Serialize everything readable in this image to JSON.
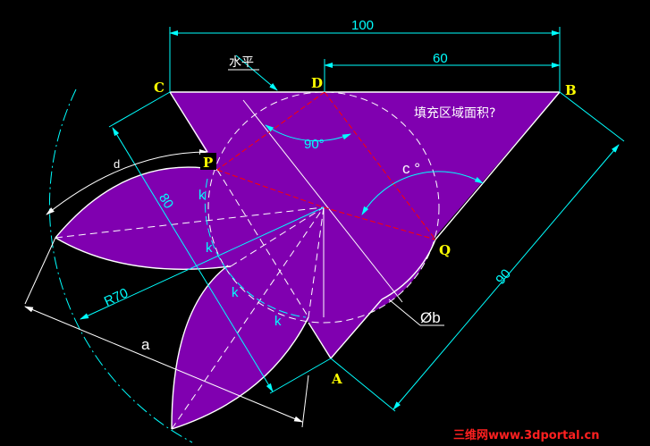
{
  "colors": {
    "fill": "#8000b0",
    "dimension": "#00ffff",
    "construction": "#ff0000",
    "label": "#ffff00",
    "outline": "#ffffff"
  },
  "points": {
    "A": "A",
    "B": "B",
    "C": "C",
    "D": "D",
    "P": "P",
    "Q": "Q"
  },
  "dimensions": {
    "top_width": "100",
    "d_to_b": "60",
    "ca_length": "80",
    "ba_length": "90",
    "radius": "R70",
    "right_angle": "90°",
    "angle_c": "c °",
    "circle_diameter": "Øb",
    "length_a": "a",
    "arc_d": "d",
    "k": "k"
  },
  "notes": {
    "horizontal": "水平",
    "question": "填充区域面积?"
  },
  "watermark": "三维网www.3dportal.cn"
}
